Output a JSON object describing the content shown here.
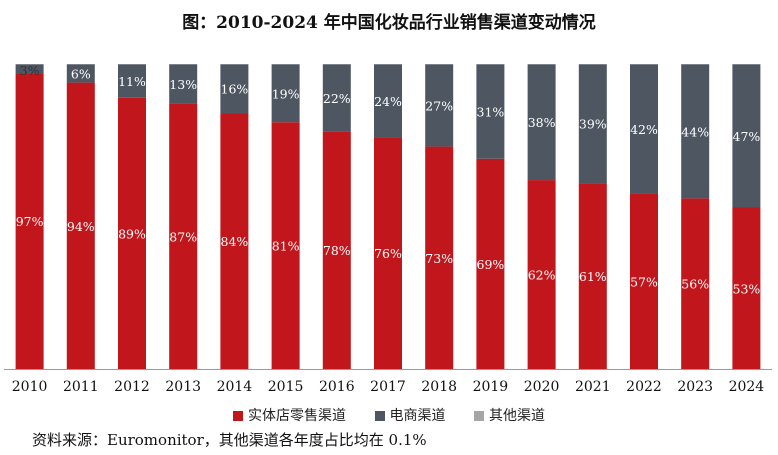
{
  "chart_data": {
    "type": "bar",
    "stacked": true,
    "title": "图：2010-2024 年中国化妆品行业销售渠道变动情况",
    "xlabel": "",
    "ylabel": "",
    "ylim": [
      0,
      100
    ],
    "grid": false,
    "categories": [
      "2010",
      "2011",
      "2012",
      "2013",
      "2014",
      "2015",
      "2016",
      "2017",
      "2018",
      "2019",
      "2020",
      "2021",
      "2022",
      "2023",
      "2024"
    ],
    "series": [
      {
        "name": "实体店零售渠道",
        "color": "#c0161c",
        "values": [
          97,
          94,
          89,
          87,
          84,
          81,
          78,
          76,
          73,
          69,
          62,
          61,
          57,
          56,
          53
        ]
      },
      {
        "name": "电商渠道",
        "color": "#4e5662",
        "values": [
          3,
          6,
          11,
          13,
          16,
          19,
          22,
          24,
          27,
          31,
          38,
          39,
          42,
          44,
          47
        ]
      },
      {
        "name": "其他渠道",
        "color": "#a6a6a6",
        "values": [
          0.1,
          0.1,
          0.1,
          0.1,
          0.1,
          0.1,
          0.1,
          0.1,
          0.1,
          0.1,
          0.1,
          0.1,
          0.1,
          0.1,
          0.1
        ]
      }
    ],
    "data_labels": {
      "实体店零售渠道": [
        "97%",
        "94%",
        "89%",
        "87%",
        "84%",
        "81%",
        "78%",
        "76%",
        "73%",
        "69%",
        "62%",
        "61%",
        "57%",
        "56%",
        "53%"
      ],
      "电商渠道": [
        "3%",
        "6%",
        "11%",
        "13%",
        "16%",
        "19%",
        "22%",
        "24%",
        "27%",
        "31%",
        "38%",
        "39%",
        "42%",
        "44%",
        "47%"
      ]
    },
    "legend_position": "bottom",
    "source_note": "资料来源：Euromonitor，其他渠道各年度占比均在 0.1%"
  }
}
